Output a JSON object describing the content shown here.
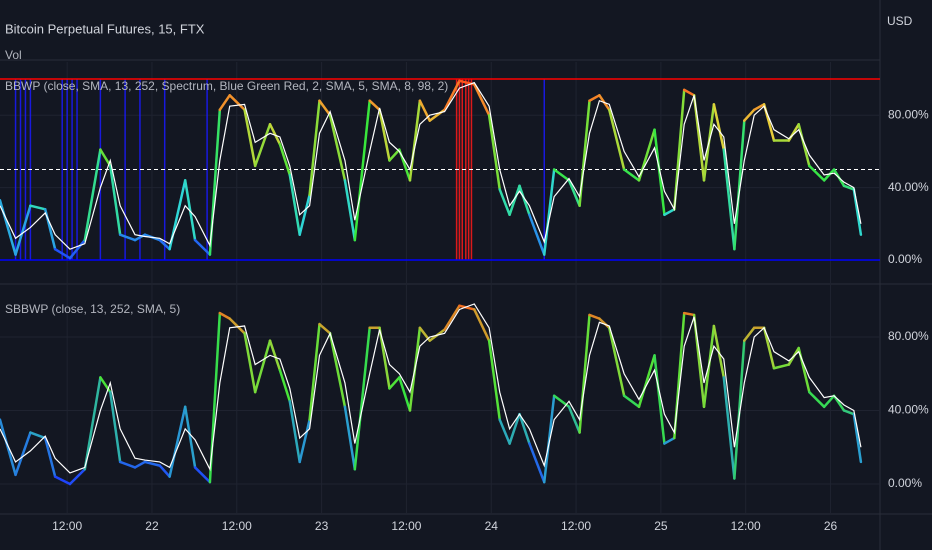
{
  "header": {
    "title": "Bitcoin Perpetual Futures, 15, FTX",
    "currency": "USD",
    "vol": "Vol"
  },
  "chart_data": [
    {
      "type": "line",
      "title": "BBWP (close, SMA, 13, 252, Spectrum, Blue Green Red, 2, SMA, 5, SMA, 8, 98, 2)",
      "x": [
        2.5,
        4.7,
        6.8,
        8.9,
        10.3,
        12.4,
        14.5,
        16.7,
        18.1,
        19.5,
        21.6,
        23.0,
        25.1,
        26.5,
        28.7,
        30.1,
        32.2,
        33.6,
        35.0,
        37.1,
        38.6,
        40.7,
        42.1,
        43.5,
        44.9,
        46.3,
        47.7,
        49.2,
        51.3,
        52.7,
        54.8,
        56.2,
        57.6,
        59.0,
        60.5,
        61.9,
        63.3,
        65.4,
        67.5,
        69.6,
        71.7,
        73.2,
        74.6,
        76.0,
        77.4,
        79.5,
        80.9,
        83.0,
        84.5,
        85.9,
        87.3,
        88.7,
        90.8,
        92.9,
        95.1,
        96.5,
        97.9,
        99.3,
        100.7,
        102.1,
        103.5,
        104.9,
        106.4,
        107.8,
        109.2,
        110.6,
        112.0,
        114.1,
        115.5,
        117.0,
        119.1,
        120.5,
        121.9,
        123.3,
        124.3
      ],
      "values": [
        33,
        3,
        30,
        28,
        6,
        1,
        11,
        61,
        52,
        14,
        11,
        14,
        11,
        6,
        44,
        11,
        3,
        83,
        91,
        83,
        52,
        75,
        64,
        47,
        14,
        36,
        88,
        80,
        44,
        11,
        88,
        83,
        55,
        61,
        44,
        88,
        77,
        83,
        99,
        97,
        80,
        39,
        25,
        41,
        25,
        3,
        50,
        44,
        30,
        88,
        91,
        83,
        50,
        44,
        72,
        25,
        28,
        94,
        91,
        44,
        86,
        61,
        6,
        77,
        83,
        86,
        66,
        66,
        75,
        52,
        44,
        50,
        41,
        39,
        14
      ],
      "ma_values": [
        30,
        12,
        18,
        26,
        14,
        6,
        9,
        40,
        55,
        30,
        14,
        13,
        12,
        9,
        30,
        24,
        8,
        55,
        85,
        86,
        65,
        70,
        68,
        52,
        25,
        30,
        70,
        82,
        55,
        22,
        60,
        84,
        65,
        60,
        50,
        75,
        80,
        82,
        95,
        98,
        85,
        50,
        30,
        38,
        30,
        10,
        35,
        45,
        35,
        70,
        88,
        86,
        60,
        46,
        62,
        38,
        28,
        75,
        91,
        55,
        75,
        68,
        20,
        55,
        80,
        85,
        72,
        67,
        72,
        58,
        47,
        48,
        43,
        40,
        20
      ],
      "spectrum": [
        "#1e3cff",
        "#2fd6d6",
        "#39e639",
        "#e6d23a",
        "#ff4a1a"
      ],
      "ma_color": "#ffffff",
      "highlights": [
        {
          "color": "#1a1aff",
          "x": [
            4.7,
            5.4,
            6.1,
            6.8,
            11.3,
            12.0,
            12.7,
            13.4,
            16.7,
            20.2,
            22.3,
            25.8,
            31.8,
            79.5
          ]
        },
        {
          "color": "#ff1a1a",
          "x": [
            67.1,
            67.5,
            67.9,
            68.4,
            68.8,
            69.2
          ]
        }
      ],
      "hlines": [
        {
          "value": 100,
          "color": "#ff0000"
        },
        {
          "value": 50,
          "color": "#ffffff",
          "dashed": true
        },
        {
          "value": 0,
          "color": "#0000ff"
        }
      ],
      "xlim": [
        2.5,
        127
      ],
      "ylim": [
        -12.7,
        109.4
      ],
      "xticks": [
        {
          "value": 12,
          "label": "12:00"
        },
        {
          "value": 24,
          "label": "22"
        },
        {
          "value": 36,
          "label": "12:00"
        },
        {
          "value": 48,
          "label": "23"
        },
        {
          "value": 60,
          "label": "12:00"
        },
        {
          "value": 72,
          "label": "24"
        },
        {
          "value": 84,
          "label": "12:00"
        },
        {
          "value": 96,
          "label": "25"
        },
        {
          "value": 108,
          "label": "12:00"
        },
        {
          "value": 120,
          "label": "26"
        }
      ],
      "yticks": [
        {
          "value": 0,
          "label": "0.00%"
        },
        {
          "value": 40,
          "label": "40.00%"
        },
        {
          "value": 80,
          "label": "80.00%"
        }
      ],
      "grid": true
    },
    {
      "type": "line",
      "title": "SBBWP (close, 13, 252, SMA, 5)",
      "x": [
        2.5,
        4.7,
        6.8,
        8.9,
        10.3,
        12.4,
        14.5,
        16.7,
        18.1,
        19.5,
        21.6,
        23.0,
        25.1,
        26.5,
        28.7,
        30.1,
        32.2,
        33.6,
        35.0,
        37.1,
        38.6,
        40.7,
        42.1,
        43.5,
        44.9,
        46.3,
        47.7,
        49.2,
        51.3,
        52.7,
        54.8,
        56.2,
        57.6,
        59.0,
        60.5,
        61.9,
        63.3,
        65.4,
        67.5,
        69.6,
        71.7,
        73.2,
        74.6,
        76.0,
        77.4,
        79.5,
        80.9,
        83.0,
        84.5,
        85.9,
        87.3,
        88.7,
        90.8,
        92.9,
        95.1,
        96.5,
        97.9,
        99.3,
        100.7,
        102.1,
        103.5,
        104.9,
        106.4,
        107.8,
        109.2,
        110.6,
        112.0,
        114.1,
        115.5,
        117.0,
        119.1,
        120.5,
        121.9,
        123.3,
        124.3
      ],
      "values": [
        35,
        5,
        28,
        25,
        4,
        0,
        8,
        58,
        50,
        12,
        9,
        12,
        10,
        4,
        42,
        9,
        1,
        93,
        90,
        82,
        50,
        78,
        62,
        45,
        12,
        35,
        87,
        82,
        42,
        8,
        85,
        85,
        52,
        58,
        40,
        85,
        78,
        84,
        97,
        95,
        78,
        35,
        22,
        38,
        22,
        1,
        48,
        42,
        28,
        92,
        90,
        85,
        48,
        42,
        70,
        22,
        25,
        93,
        92,
        42,
        86,
        58,
        3,
        78,
        85,
        85,
        63,
        65,
        74,
        50,
        42,
        48,
        40,
        38,
        12
      ],
      "ma_values": [
        30,
        12,
        18,
        26,
        14,
        6,
        9,
        40,
        55,
        30,
        14,
        13,
        12,
        9,
        30,
        24,
        8,
        55,
        85,
        86,
        65,
        70,
        68,
        52,
        25,
        30,
        70,
        82,
        55,
        22,
        60,
        84,
        65,
        60,
        50,
        75,
        80,
        82,
        95,
        98,
        85,
        50,
        30,
        38,
        30,
        10,
        35,
        45,
        35,
        70,
        88,
        86,
        60,
        46,
        62,
        38,
        28,
        75,
        91,
        55,
        75,
        68,
        20,
        55,
        80,
        85,
        72,
        67,
        72,
        58,
        47,
        48,
        43,
        40,
        20
      ],
      "spectrum": [
        "#1e3cff",
        "#2a9fd0",
        "#39e639",
        "#a6d23a",
        "#ff5a1a"
      ],
      "ma_color": "#ffffff",
      "xlim": [
        2.5,
        127
      ],
      "ylim": [
        -15.8,
        108.3
      ],
      "xticks": [
        {
          "value": 12,
          "label": "12:00"
        },
        {
          "value": 24,
          "label": "22"
        },
        {
          "value": 36,
          "label": "12:00"
        },
        {
          "value": 48,
          "label": "23"
        },
        {
          "value": 60,
          "label": "12:00"
        },
        {
          "value": 72,
          "label": "24"
        },
        {
          "value": 84,
          "label": "12:00"
        },
        {
          "value": 96,
          "label": "25"
        },
        {
          "value": 108,
          "label": "12:00"
        },
        {
          "value": 120,
          "label": "26"
        }
      ],
      "yticks": [
        {
          "value": 0,
          "label": "0.00%"
        },
        {
          "value": 40,
          "label": "40.00%"
        },
        {
          "value": 80,
          "label": "80.00%"
        }
      ],
      "grid": true
    }
  ]
}
